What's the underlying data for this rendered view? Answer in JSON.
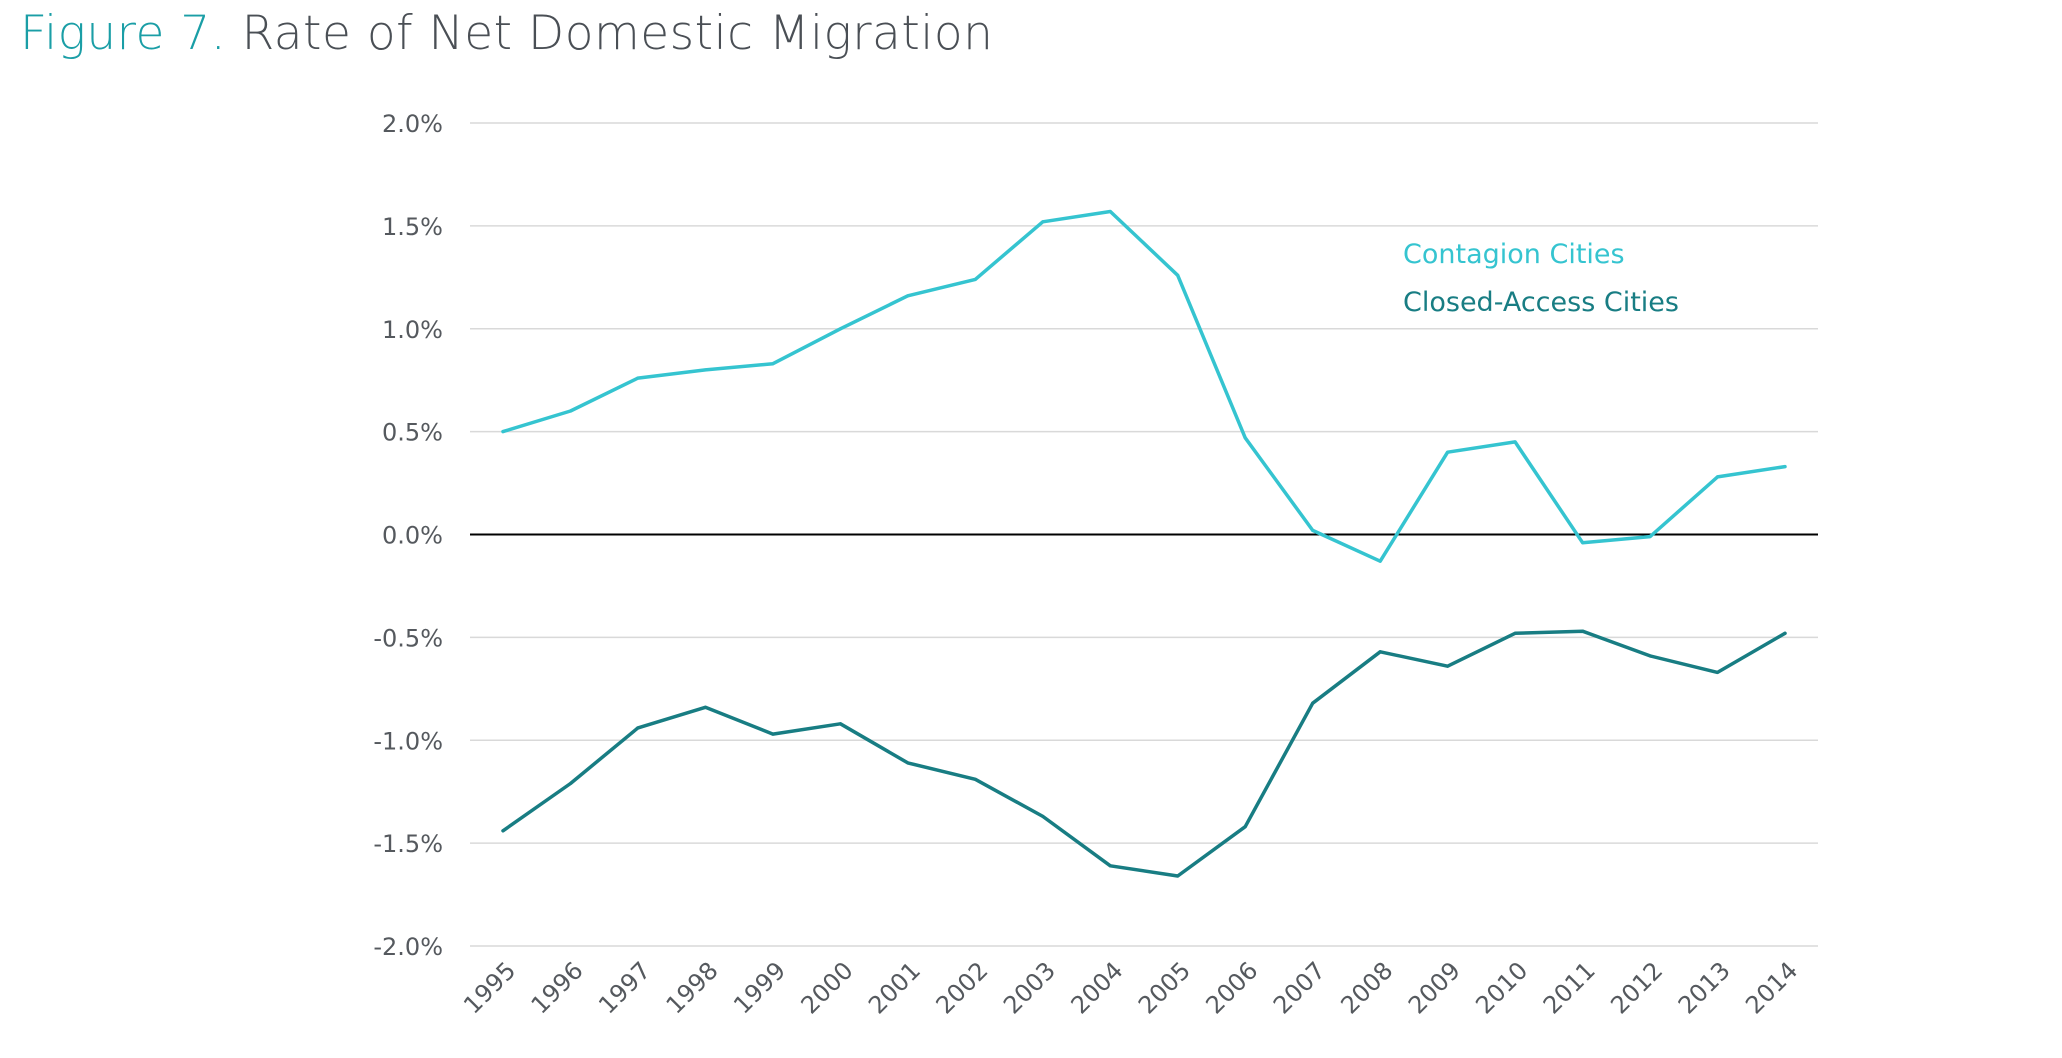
{
  "title": {
    "figure_label": "Figure 7.",
    "text": "Rate of Net Domestic Migration"
  },
  "colors": {
    "contagion": "#35c4d0",
    "closed_access": "#187d83",
    "grid": "#d9d9d9",
    "zero_line": "#000000",
    "figure_label": "#1a9ea6"
  },
  "chart_data": {
    "type": "line",
    "title": "Rate of Net Domestic Migration",
    "x": [
      "1995",
      "1996",
      "1997",
      "1998",
      "1999",
      "2000",
      "2001",
      "2002",
      "2003",
      "2004",
      "2005",
      "2006",
      "2007",
      "2008",
      "2009",
      "2010",
      "2011",
      "2012",
      "2013",
      "2014"
    ],
    "ylim": [
      -2.0,
      2.0
    ],
    "yticks": [
      "2.0%",
      "1.5%",
      "1.0%",
      "0.5%",
      "0.0%",
      "-0.5%",
      "-1.0%",
      "-1.5%",
      "-2.0%"
    ],
    "ytick_values": [
      2.0,
      1.5,
      1.0,
      0.5,
      0.0,
      -0.5,
      -1.0,
      -1.5,
      -2.0
    ],
    "grid": true,
    "legend_position": "top-right",
    "series": [
      {
        "name": "Contagion Cities",
        "color": "#35c4d0",
        "values": [
          0.5,
          0.6,
          0.76,
          0.8,
          0.83,
          1.0,
          1.16,
          1.24,
          1.52,
          1.57,
          1.26,
          0.47,
          0.02,
          -0.13,
          0.4,
          0.45,
          -0.04,
          -0.01,
          0.28,
          0.33
        ]
      },
      {
        "name": "Closed-Access Cities",
        "color": "#187d83",
        "values": [
          -1.44,
          -1.21,
          -0.94,
          -0.84,
          -0.97,
          -0.92,
          -1.11,
          -1.19,
          -1.37,
          -1.61,
          -1.66,
          -1.42,
          -0.82,
          -0.57,
          -0.64,
          -0.48,
          -0.47,
          -0.59,
          -0.67,
          -0.48
        ]
      }
    ]
  }
}
